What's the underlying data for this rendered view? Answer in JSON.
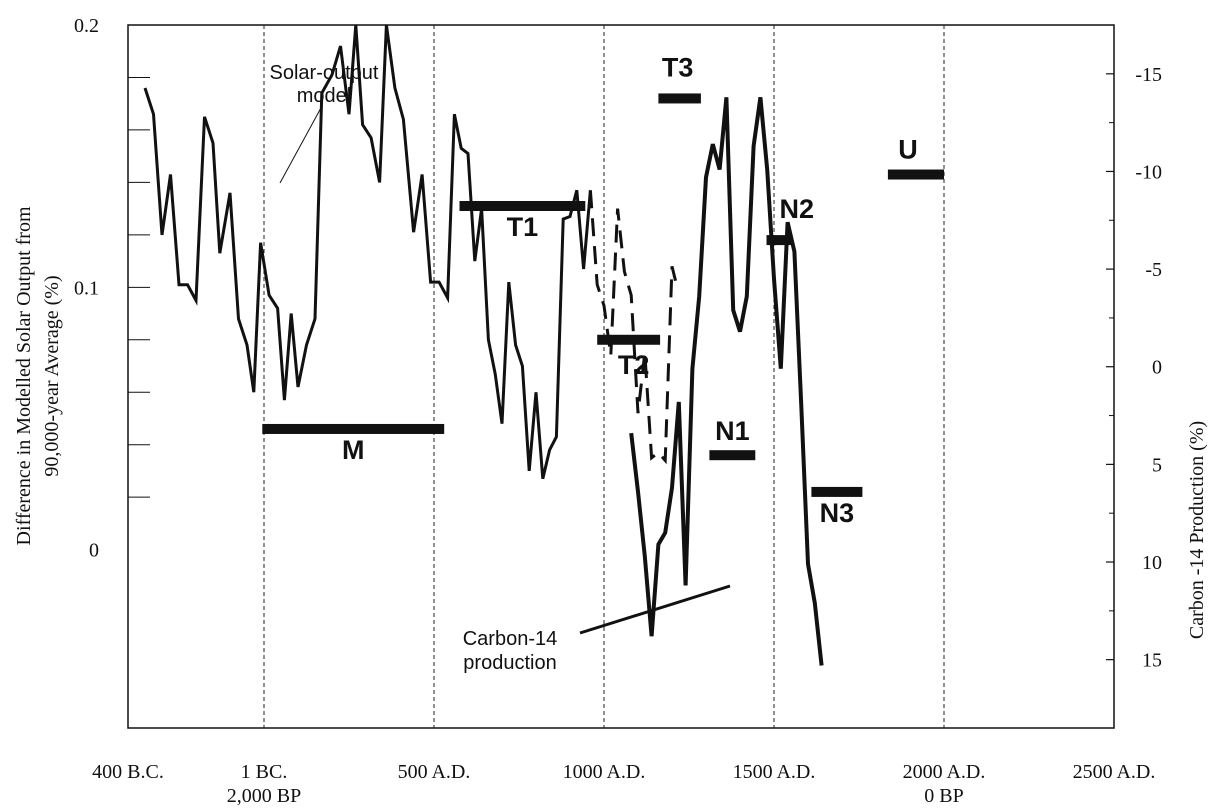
{
  "chart_data": {
    "type": "line",
    "y_axis_title_line1": "Difference in Modelled Solar Output  from",
    "y_axis_title_line2": "90,000-year Average (%)",
    "right_axis_title": "Carbon -14 Production  (%)",
    "x_ticks": [
      {
        "x": -400,
        "lines": [
          "400 B.C."
        ]
      },
      {
        "x": 0,
        "lines": [
          "1 BC.",
          "2,000 BP"
        ]
      },
      {
        "x": 500,
        "lines": [
          "500 A.D."
        ]
      },
      {
        "x": 1000,
        "lines": [
          "1000 A.D."
        ]
      },
      {
        "x": 1500,
        "lines": [
          "1500 A.D."
        ]
      },
      {
        "x": 2000,
        "lines": [
          "2000 A.D.",
          "0 BP"
        ]
      },
      {
        "x": 2500,
        "lines": [
          "2500 A.D."
        ]
      }
    ],
    "xlim": [
      -400,
      2500
    ],
    "y_ticks": [
      {
        "y": 0.2,
        "label": "0.2"
      },
      {
        "y": 0.1,
        "label": "0.1"
      },
      {
        "y": 0,
        "label": "0"
      }
    ],
    "ylim": [
      -0.068,
      0.2
    ],
    "right_ticks": [
      {
        "v": -15,
        "label": "-15"
      },
      {
        "v": -10,
        "label": "-10"
      },
      {
        "v": -5,
        "label": "-5"
      },
      {
        "v": 0,
        "label": "0"
      },
      {
        "v": 5,
        "label": "5"
      },
      {
        "v": 10,
        "label": "10"
      },
      {
        "v": 15,
        "label": "15"
      }
    ],
    "right_ylim": [
      -17.5,
      18.5
    ],
    "vertical_reference_lines": [
      0,
      500,
      1000,
      1500,
      2000
    ],
    "solar_output_model": {
      "name": "Solar-output model",
      "style": "solid",
      "points": [
        [
          -350,
          0.176
        ],
        [
          -325,
          0.166
        ],
        [
          -300,
          0.12
        ],
        [
          -275,
          0.143
        ],
        [
          -250,
          0.101
        ],
        [
          -225,
          0.101
        ],
        [
          -200,
          0.095
        ],
        [
          -175,
          0.165
        ],
        [
          -150,
          0.155
        ],
        [
          -130,
          0.113
        ],
        [
          -100,
          0.136
        ],
        [
          -75,
          0.088
        ],
        [
          -50,
          0.078
        ],
        [
          -30,
          0.06
        ],
        [
          -10,
          0.117
        ],
        [
          15,
          0.097
        ],
        [
          40,
          0.092
        ],
        [
          60,
          0.057
        ],
        [
          80,
          0.09
        ],
        [
          100,
          0.062
        ],
        [
          125,
          0.078
        ],
        [
          150,
          0.088
        ],
        [
          170,
          0.174
        ],
        [
          200,
          0.181
        ],
        [
          225,
          0.192
        ],
        [
          250,
          0.166
        ],
        [
          270,
          0.2
        ],
        [
          290,
          0.162
        ],
        [
          315,
          0.157
        ],
        [
          340,
          0.14
        ],
        [
          360,
          0.2
        ],
        [
          385,
          0.176
        ],
        [
          410,
          0.164
        ],
        [
          440,
          0.121
        ],
        [
          465,
          0.143
        ],
        [
          490,
          0.102
        ],
        [
          515,
          0.102
        ],
        [
          540,
          0.096
        ],
        [
          560,
          0.166
        ],
        [
          580,
          0.153
        ],
        [
          600,
          0.151
        ],
        [
          620,
          0.11
        ],
        [
          640,
          0.13
        ],
        [
          660,
          0.08
        ],
        [
          680,
          0.067
        ],
        [
          700,
          0.048
        ],
        [
          720,
          0.102
        ],
        [
          740,
          0.078
        ],
        [
          760,
          0.07
        ],
        [
          780,
          0.03
        ],
        [
          800,
          0.06
        ],
        [
          820,
          0.027
        ],
        [
          840,
          0.038
        ],
        [
          860,
          0.043
        ],
        [
          880,
          0.126
        ],
        [
          900,
          0.127
        ],
        [
          920,
          0.137
        ],
        [
          940,
          0.107
        ],
        [
          960,
          0.137
        ]
      ]
    },
    "solar_output_projection": {
      "style": "dashed",
      "points": [
        [
          960,
          0.137
        ],
        [
          980,
          0.101
        ],
        [
          1000,
          0.093
        ],
        [
          1020,
          0.074
        ],
        [
          1040,
          0.13
        ],
        [
          1060,
          0.106
        ],
        [
          1080,
          0.097
        ],
        [
          1100,
          0.052
        ],
        [
          1120,
          0.075
        ],
        [
          1140,
          0.035
        ],
        [
          1160,
          0.037
        ],
        [
          1180,
          0.034
        ],
        [
          1200,
          0.108
        ],
        [
          1215,
          0.1
        ]
      ]
    },
    "carbon14_production": {
      "name": "Carbon-14 production",
      "points": [
        [
          1080,
          3.4
        ],
        [
          1100,
          6.4
        ],
        [
          1120,
          9.7
        ],
        [
          1140,
          13.8
        ],
        [
          1160,
          9.1
        ],
        [
          1180,
          8.5
        ],
        [
          1200,
          6.2
        ],
        [
          1220,
          1.8
        ],
        [
          1240,
          11.2
        ],
        [
          1260,
          0.1
        ],
        [
          1280,
          -3.6
        ],
        [
          1300,
          -9.7
        ],
        [
          1320,
          -11.4
        ],
        [
          1340,
          -10.1
        ],
        [
          1360,
          -13.8
        ],
        [
          1380,
          -2.9
        ],
        [
          1400,
          -1.8
        ],
        [
          1420,
          -3.6
        ],
        [
          1440,
          -11.3
        ],
        [
          1460,
          -13.8
        ],
        [
          1480,
          -10.1
        ],
        [
          1500,
          -4.5
        ],
        [
          1520,
          0.1
        ],
        [
          1540,
          -7.4
        ],
        [
          1560,
          -5.9
        ],
        [
          1580,
          1.9
        ],
        [
          1600,
          10.1
        ],
        [
          1620,
          12.1
        ],
        [
          1640,
          15.3
        ]
      ]
    },
    "periods": [
      {
        "label": "M",
        "x": [
          -5,
          530
        ],
        "y": 0.046
      },
      {
        "label": "T1",
        "x": [
          575,
          945
        ],
        "y": 0.131
      },
      {
        "label": "T2",
        "x": [
          980,
          1165
        ],
        "y": 0.08
      },
      {
        "label": "T3",
        "x": [
          1160,
          1285
        ],
        "y": 0.172
      },
      {
        "label": "N1",
        "x": [
          1310,
          1445
        ],
        "y": 0.036
      },
      {
        "label": "N2",
        "x": [
          1478,
          1550
        ],
        "y": 0.118
      },
      {
        "label": "N3",
        "x": [
          1610,
          1760
        ],
        "y": 0.022
      },
      {
        "label": "U",
        "x": [
          1835,
          2000
        ],
        "y": 0.143
      }
    ],
    "annotations": {
      "solar_label_line1": "Solar-output",
      "solar_label_line2": "model",
      "carbon_label_line1": "Carbon-14",
      "carbon_label_line2": "production"
    }
  }
}
